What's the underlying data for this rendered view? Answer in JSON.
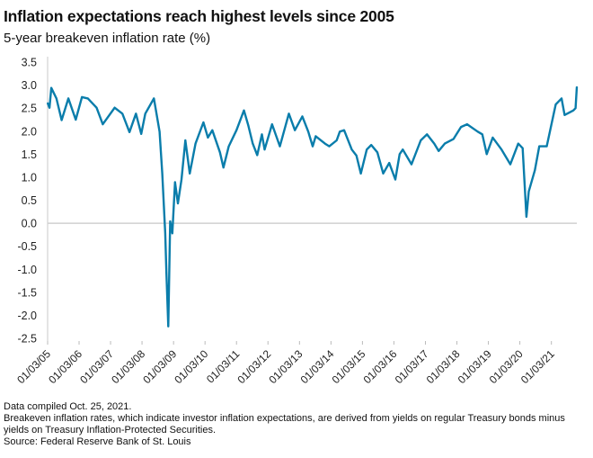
{
  "chart_data": {
    "type": "line",
    "title": "Inflation expectations reach highest levels since 2005",
    "subtitle": "5-year breakeven inflation rate (%)",
    "xlabel": "",
    "ylabel": "",
    "ylim": [
      -2.5,
      3.5
    ],
    "xlim": [
      "2005-01-03",
      "2021-10-25"
    ],
    "yticks": [
      "3.5",
      "3.0",
      "2.5",
      "2.0",
      "1.5",
      "1.0",
      "0.5",
      "0.0",
      "-0.5",
      "-1.0",
      "-1.5",
      "-2.0",
      "-2.5"
    ],
    "xticks": [
      "01/03/05",
      "01/03/06",
      "01/03/07",
      "01/03/08",
      "01/03/09",
      "01/03/10",
      "01/03/11",
      "01/03/12",
      "01/03/13",
      "01/03/14",
      "01/03/15",
      "01/03/16",
      "01/03/17",
      "01/03/18",
      "01/03/19",
      "01/03/20",
      "01/03/21"
    ],
    "grid": false,
    "zero_line": true,
    "line_color": "#0a7dab",
    "series": [
      {
        "x": [
          "2005-01-03",
          "2005-01-25",
          "2005-02-15",
          "2005-04-15",
          "2005-06-15",
          "2005-09-01",
          "2005-11-25",
          "2006-02-05",
          "2006-04-15",
          "2006-07-25",
          "2006-10-05",
          "2007-02-20",
          "2007-05-20",
          "2007-08-10",
          "2007-10-25",
          "2007-12-25",
          "2008-02-10",
          "2008-05-20",
          "2008-07-25",
          "2008-08-25",
          "2008-09-28",
          "2008-10-12",
          "2008-11-03",
          "2008-11-25",
          "2008-12-20",
          "2009-01-20",
          "2009-02-22",
          "2009-04-05",
          "2009-05-20",
          "2009-07-10",
          "2009-09-15",
          "2009-12-15",
          "2010-02-05",
          "2010-03-28",
          "2010-06-25",
          "2010-08-05",
          "2010-10-05",
          "2011-01-03",
          "2011-03-30",
          "2011-05-20",
          "2011-07-10",
          "2011-09-01",
          "2011-10-25",
          "2011-11-25",
          "2012-02-20",
          "2012-05-20",
          "2012-09-01",
          "2012-11-10",
          "2013-02-05",
          "2013-04-15",
          "2013-06-05",
          "2013-07-10",
          "2013-10-25",
          "2013-12-15",
          "2014-03-10",
          "2014-04-15",
          "2014-06-05",
          "2014-09-01",
          "2014-10-25",
          "2014-12-15",
          "2015-02-22",
          "2015-04-15",
          "2015-06-25",
          "2015-09-01",
          "2015-11-10",
          "2016-01-20",
          "2016-03-10",
          "2016-04-15",
          "2016-07-25",
          "2016-11-10",
          "2017-01-20",
          "2017-04-15",
          "2017-06-05",
          "2017-08-15",
          "2017-11-25",
          "2018-02-20",
          "2018-05-01",
          "2018-09-01",
          "2018-10-25",
          "2018-12-15",
          "2019-02-22",
          "2019-06-05",
          "2019-09-15",
          "2019-12-15",
          "2020-02-05",
          "2020-03-19",
          "2020-04-15",
          "2020-06-25",
          "2020-08-15",
          "2020-11-10",
          "2021-02-22",
          "2021-05-01",
          "2021-06-05",
          "2021-09-15",
          "2021-10-10",
          "2021-10-25"
        ],
        "y": [
          2.61,
          2.51,
          2.94,
          2.71,
          2.24,
          2.71,
          2.25,
          2.74,
          2.71,
          2.51,
          2.15,
          2.51,
          2.38,
          1.98,
          2.38,
          1.94,
          2.38,
          2.71,
          1.99,
          1.08,
          -0.22,
          -1.07,
          -2.24,
          0.04,
          -0.22,
          0.89,
          0.43,
          0.95,
          1.8,
          1.08,
          1.73,
          2.19,
          1.86,
          2.02,
          1.54,
          1.21,
          1.67,
          2.02,
          2.45,
          2.12,
          1.73,
          1.48,
          1.93,
          1.6,
          2.15,
          1.67,
          2.38,
          2.02,
          2.32,
          1.99,
          1.67,
          1.89,
          1.73,
          1.67,
          1.8,
          1.99,
          2.02,
          1.6,
          1.47,
          1.08,
          1.6,
          1.7,
          1.54,
          1.08,
          1.31,
          0.95,
          1.5,
          1.6,
          1.28,
          1.8,
          1.93,
          1.73,
          1.57,
          1.73,
          1.83,
          2.09,
          2.15,
          1.99,
          1.93,
          1.5,
          1.86,
          1.6,
          1.28,
          1.73,
          1.63,
          0.14,
          0.69,
          1.15,
          1.67,
          1.67,
          2.58,
          2.71,
          2.35,
          2.45,
          2.5,
          2.96
        ]
      }
    ]
  },
  "footer": {
    "compiled": "Data compiled Oct. 25, 2021.",
    "note": "Breakeven inflation rates, which indicate investor inflation expectations, are derived from yields on regular Treasury bonds minus yields on Treasury Inflation-Protected Securities.",
    "source": "Source: Federal Reserve Bank of St. Louis"
  }
}
